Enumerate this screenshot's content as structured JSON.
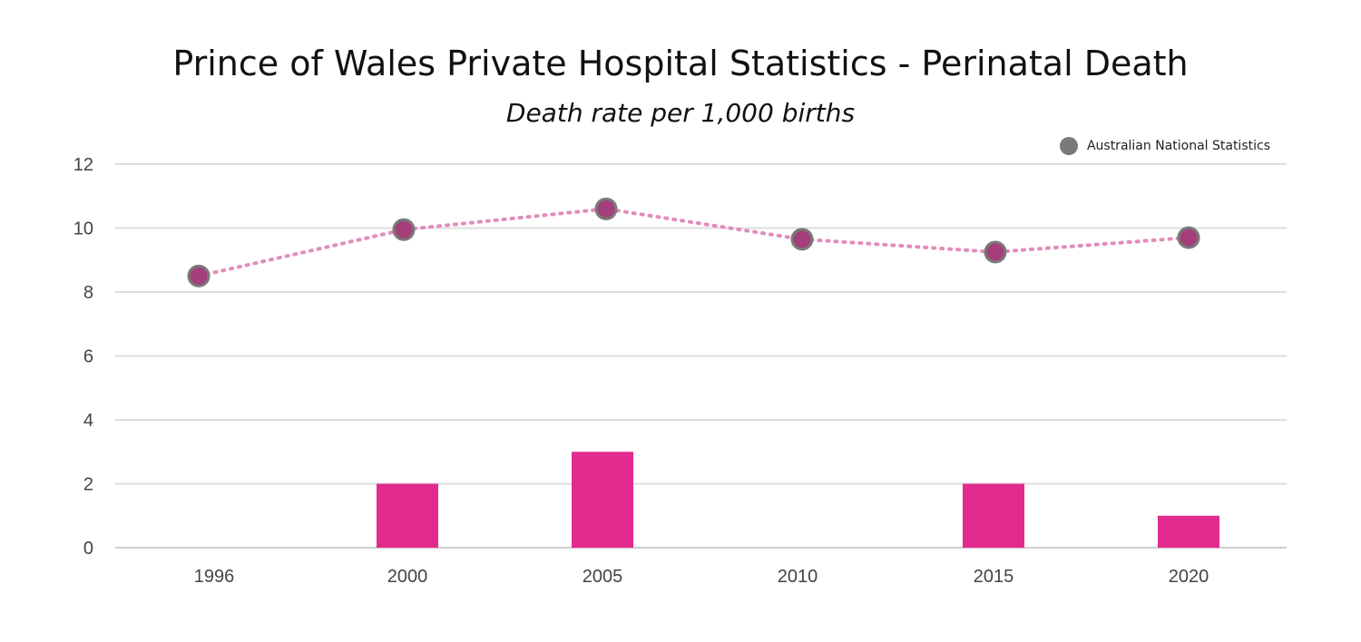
{
  "chart_data": {
    "type": "bar",
    "title": "Prince of Wales Private Hospital Statistics - Perinatal Death",
    "subtitle": "Death rate per 1,000 births",
    "categories": [
      "1996",
      "2000",
      "2005",
      "2010",
      "2015",
      "2020"
    ],
    "series": [
      {
        "type": "bar",
        "values": [
          0,
          2,
          3,
          0,
          2,
          1
        ],
        "color": "#e22b8e"
      },
      {
        "name": "Australian National Statistics",
        "type": "line",
        "values": [
          8.5,
          9.95,
          10.6,
          9.65,
          9.25,
          9.7
        ],
        "line_color": "#e48bb9",
        "line_style": "dotted",
        "marker_fill": "#a43f7c",
        "marker_edge": "#7a7a7a"
      }
    ],
    "ylim": [
      0,
      12
    ],
    "yticks": [
      "0",
      "2",
      "4",
      "6",
      "8",
      "10",
      "12"
    ],
    "grid": true,
    "legend": {
      "position": "top-right",
      "label": "Australian National Statistics",
      "color": "#7a7a7a"
    }
  }
}
